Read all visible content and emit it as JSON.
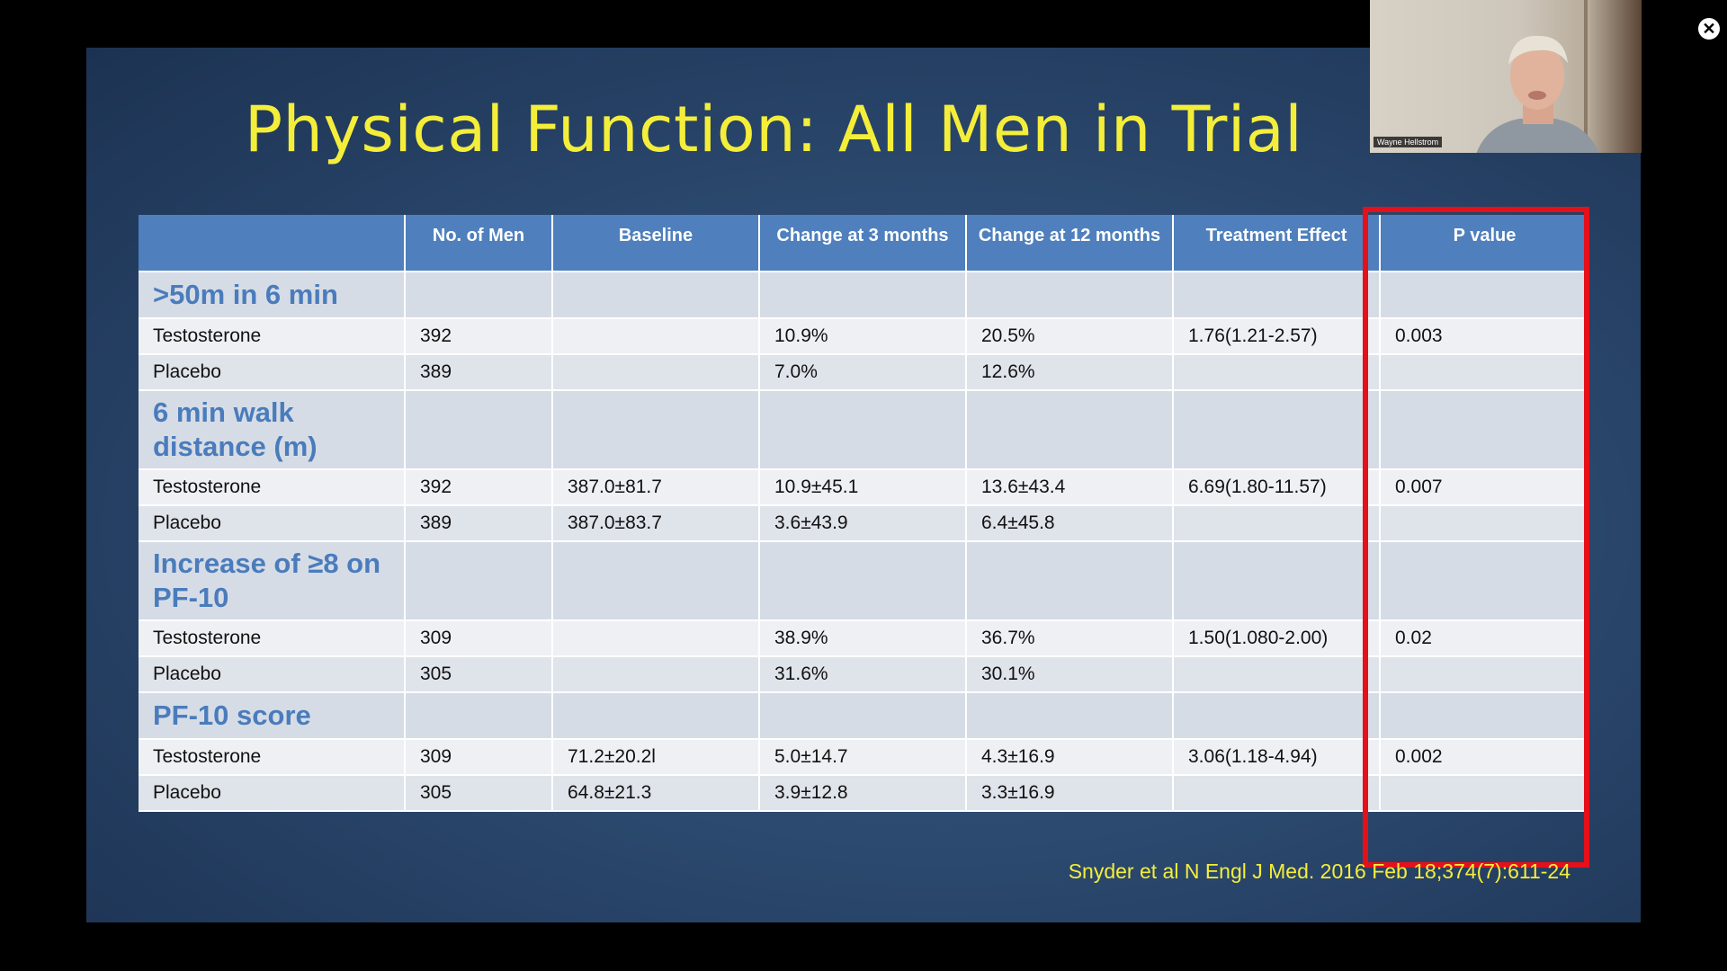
{
  "slide": {
    "title": "Physical Function: All Men in Trial",
    "citation": "Snyder et al N Engl J Med. 2016 Feb 18;374(7):611-24",
    "table": {
      "headers": [
        "",
        "No. of Men",
        "Baseline",
        "Change at 3 months",
        "Change at 12 months",
        "Treatment Effect",
        "P value"
      ],
      "sections": [
        {
          "label": ">50m in 6 min",
          "rows": [
            [
              "Testosterone",
              "392",
              "",
              "10.9%",
              "20.5%",
              "1.76(1.21-2.57)",
              "0.003"
            ],
            [
              "Placebo",
              "389",
              "",
              "7.0%",
              "12.6%",
              "",
              ""
            ]
          ]
        },
        {
          "label": "6 min walk distance (m)",
          "rows": [
            [
              "Testosterone",
              "392",
              "387.0±81.7",
              "10.9±45.1",
              "13.6±43.4",
              "6.69(1.80-11.57)",
              "0.007"
            ],
            [
              "Placebo",
              "389",
              "387.0±83.7",
              "3.6±43.9",
              "6.4±45.8",
              "",
              ""
            ]
          ]
        },
        {
          "label": "Increase of ≥8 on PF-10",
          "rows": [
            [
              "Testosterone",
              "309",
              "",
              "38.9%",
              "36.7%",
              "1.50(1.080-2.00)",
              "0.02"
            ],
            [
              "Placebo",
              "305",
              "",
              "31.6%",
              "30.1%",
              "",
              ""
            ]
          ]
        },
        {
          "label": "PF-10 score",
          "rows": [
            [
              "Testosterone",
              "309",
              "71.2±20.2l",
              "5.0±14.7",
              "4.3±16.9",
              "3.06(1.18-4.94)",
              "0.002"
            ],
            [
              "Placebo",
              "305",
              "64.8±21.3",
              "3.9±12.8",
              "3.3±16.9",
              "",
              ""
            ]
          ]
        }
      ]
    }
  },
  "webcam": {
    "participant_name": "Wayne Hellstrom"
  },
  "controls": {
    "close_glyph": "✕",
    "close_icon": "close-icon"
  },
  "colors": {
    "title": "#f4ee3a",
    "header_bg": "#4f80bd",
    "section_label": "#4a7cbc",
    "highlight_border": "#e5101a"
  }
}
